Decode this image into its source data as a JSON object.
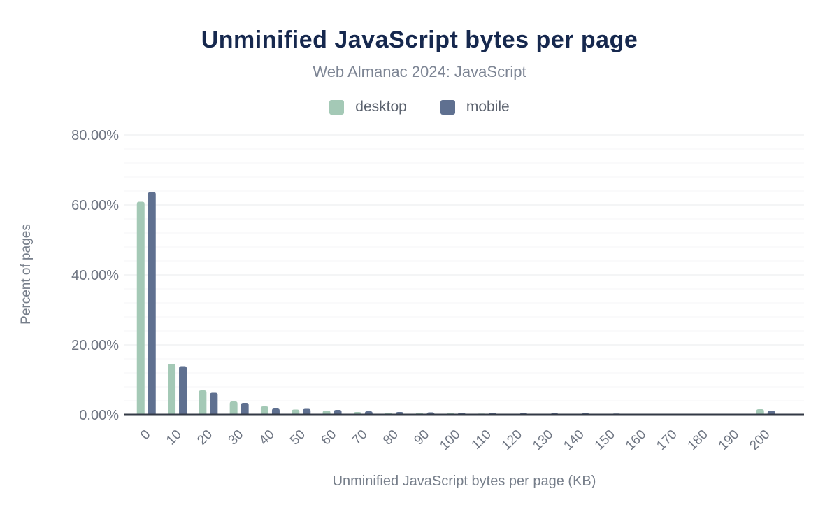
{
  "figure": {
    "title": "Unminified JavaScript bytes per page",
    "subtitle": "Web Almanac 2024: JavaScript"
  },
  "chart_data": {
    "type": "bar",
    "title": "Unminified JavaScript bytes per page",
    "subtitle": "Web Almanac 2024: JavaScript",
    "xlabel": "Unminified JavaScript bytes per page (KB)",
    "ylabel": "Percent of pages",
    "categories": [
      "0",
      "10",
      "20",
      "30",
      "40",
      "50",
      "60",
      "70",
      "80",
      "90",
      "100",
      "110",
      "120",
      "130",
      "140",
      "150",
      "160",
      "170",
      "180",
      "190",
      "200"
    ],
    "series": [
      {
        "name": "desktop",
        "color": "#a4c9b6",
        "values": [
          60.9,
          14.5,
          7.0,
          3.8,
          2.4,
          1.5,
          1.2,
          0.8,
          0.6,
          0.5,
          0.45,
          0.35,
          0.3,
          0.3,
          0.25,
          0.25,
          0.2,
          0.2,
          0.2,
          0.15,
          1.6
        ]
      },
      {
        "name": "mobile",
        "color": "#5f7090",
        "values": [
          63.7,
          13.9,
          6.3,
          3.4,
          1.8,
          1.7,
          1.4,
          1.0,
          0.8,
          0.7,
          0.6,
          0.5,
          0.45,
          0.4,
          0.4,
          0.35,
          0.3,
          0.3,
          0.25,
          0.25,
          1.1
        ]
      }
    ],
    "ylim": [
      0,
      80
    ],
    "yticks": [
      {
        "value": 0,
        "label": "0.00%"
      },
      {
        "value": 20,
        "label": "20.00%"
      },
      {
        "value": 40,
        "label": "40.00%"
      },
      {
        "value": 60,
        "label": "60.00%"
      },
      {
        "value": 80,
        "label": "80.00%"
      }
    ],
    "minor_grid_step_pct": 4,
    "grid": "horizontal",
    "legend_position": "top"
  },
  "colors": {
    "background": "#ffffff",
    "title": "#16284e",
    "subtitle": "#7d8594",
    "legend_text": "#5b626e",
    "axis_title_text": "#767e8a",
    "tick_text": "#6e7582",
    "axis_line": "#333945",
    "grid_major": "#e9ebee",
    "grid_minor": "#f4f5f7",
    "desktop_bar": "#a4c9b6",
    "mobile_bar": "#5f7090"
  }
}
